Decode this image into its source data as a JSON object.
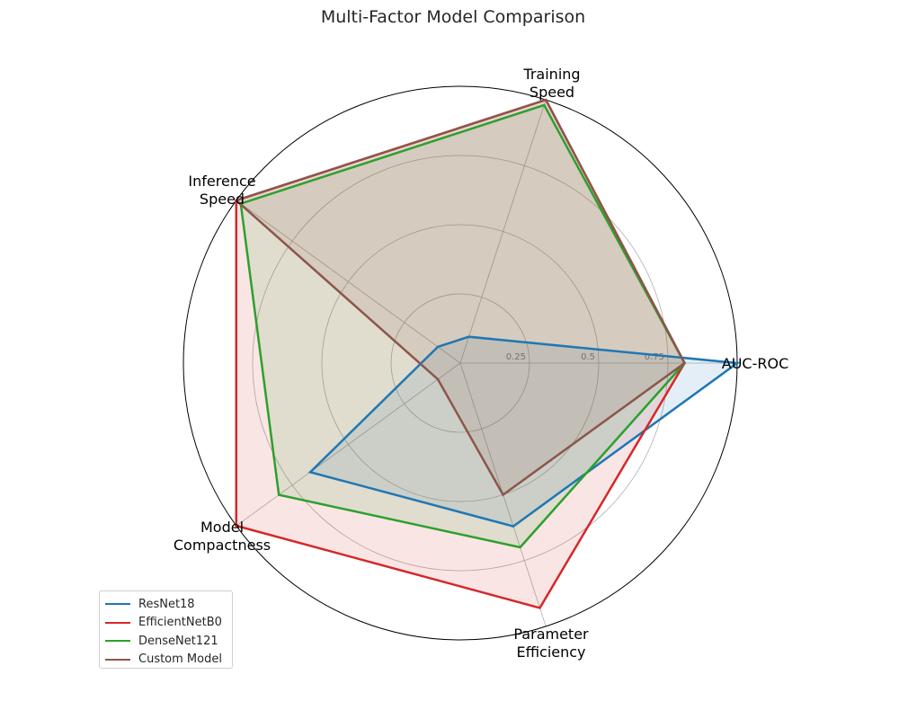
{
  "chart_data": {
    "type": "radar",
    "title": "Multi-Factor Model Comparison",
    "axes": [
      [
        "AUC-ROC"
      ],
      [
        "Training",
        "Speed"
      ],
      [
        "Inference",
        "Speed"
      ],
      [
        "Model",
        "Compactness"
      ],
      [
        "Parameter",
        "Efficiency"
      ]
    ],
    "rlim": [
      0,
      1
    ],
    "r_ticks": [
      0.25,
      0.5,
      0.75
    ],
    "r_tick_labels": [
      "0.25",
      "0.5",
      "0.75"
    ],
    "series": [
      {
        "name": "ResNet18",
        "color": "#1f77b4",
        "values": [
          1.0,
          0.1,
          0.1,
          0.67,
          0.62
        ]
      },
      {
        "name": "EfficientNetB0",
        "color": "#d62728",
        "values": [
          0.81,
          1.0,
          1.0,
          1.0,
          0.93
        ]
      },
      {
        "name": "DenseNet121",
        "color": "#2ca02c",
        "values": [
          0.81,
          0.98,
          0.98,
          0.81,
          0.7
        ]
      },
      {
        "name": "Custom Model",
        "color": "#8c564b",
        "values": [
          0.81,
          1.0,
          1.0,
          0.1,
          0.5
        ]
      }
    ],
    "legend_position": "lower-left",
    "grid": true
  }
}
